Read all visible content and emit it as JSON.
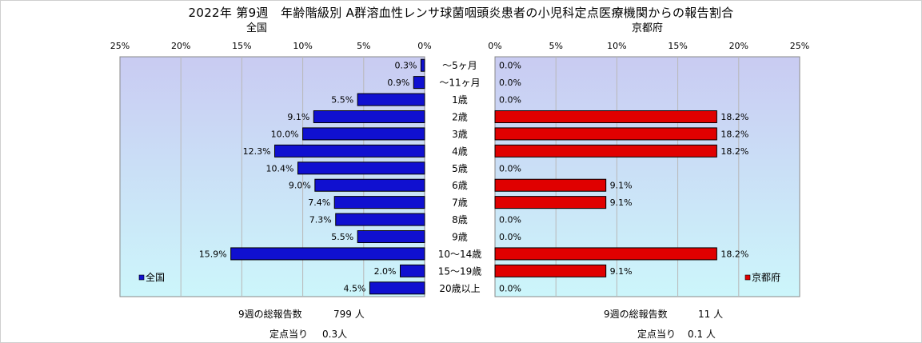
{
  "title": "2022年 第9週　年齢階級別 A群溶血性レンサ球菌咽頭炎患者の小児科定点医療機関からの報告割合",
  "left_subtitle": "全国",
  "right_subtitle": "京都府",
  "footer": {
    "left_total_label": "9週の総報告数",
    "left_total_value": "799 人",
    "left_per_label": "定点当り",
    "left_per_value": "0.3人",
    "right_total_label": "9週の総報告数",
    "right_total_value": "11 人",
    "right_per_label": "定点当り",
    "right_per_value": "0.1 人"
  },
  "colors": {
    "national_bar": "#1010d0",
    "kyoto_bar": "#e00000",
    "plot_top": "#c9cbf2",
    "plot_bottom": "#ccf6fb"
  },
  "chart_data": [
    {
      "type": "bar",
      "orientation": "horizontal",
      "direction": "right-to-left",
      "categories": [
        "～5ヶ月",
        "～11ヶ月",
        "1歳",
        "2歳",
        "3歳",
        "4歳",
        "5歳",
        "6歳",
        "7歳",
        "8歳",
        "9歳",
        "10～14歳",
        "15～19歳",
        "20歳以上"
      ],
      "series": [
        {
          "name": "全国",
          "values": [
            0.3,
            0.9,
            5.5,
            9.1,
            10.0,
            12.3,
            10.4,
            9.0,
            7.4,
            7.3,
            5.5,
            15.9,
            2.0,
            4.5
          ],
          "labels": [
            "0.3%",
            "0.9%",
            "5.5%",
            "9.1%",
            "10.0%",
            "12.3%",
            "10.4%",
            "9.0%",
            "7.4%",
            "7.3%",
            "5.5%",
            "15.9%",
            "2.0%",
            "4.5%"
          ]
        }
      ],
      "xlim": [
        0,
        25
      ],
      "xticks": [
        "25%",
        "20%",
        "15%",
        "10%",
        "5%",
        "0%"
      ],
      "grid": true,
      "legend": "bottom-left"
    },
    {
      "type": "bar",
      "orientation": "horizontal",
      "direction": "left-to-right",
      "categories": [
        "～5ヶ月",
        "～11ヶ月",
        "1歳",
        "2歳",
        "3歳",
        "4歳",
        "5歳",
        "6歳",
        "7歳",
        "8歳",
        "9歳",
        "10～14歳",
        "15～19歳",
        "20歳以上"
      ],
      "series": [
        {
          "name": "京都府",
          "values": [
            0.0,
            0.0,
            0.0,
            18.2,
            18.2,
            18.2,
            0.0,
            9.1,
            9.1,
            0.0,
            0.0,
            18.2,
            9.1,
            0.0
          ],
          "labels": [
            "0.0%",
            "0.0%",
            "0.0%",
            "18.2%",
            "18.2%",
            "18.2%",
            "0.0%",
            "9.1%",
            "9.1%",
            "0.0%",
            "0.0%",
            "18.2%",
            "9.1%",
            "0.0%"
          ]
        }
      ],
      "xlim": [
        0,
        25
      ],
      "xticks": [
        "0%",
        "5%",
        "10%",
        "15%",
        "20%",
        "25%"
      ],
      "grid": true,
      "legend": "bottom-right"
    }
  ]
}
